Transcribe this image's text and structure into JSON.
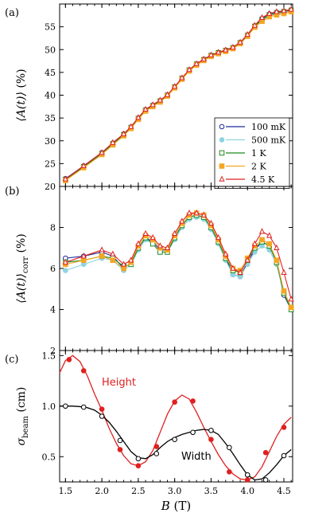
{
  "colors": {
    "s100mK": "#1f2a9c",
    "s500mK": "#8fd3e0",
    "s1K": "#1f8a1f",
    "s2K": "#f5a623",
    "s45K": "#e02020",
    "height": "#e02020",
    "width": "#000000"
  },
  "xaxis": {
    "label_main": "B",
    "label_unit": "(T)",
    "ticks": [
      "1.5",
      "2.0",
      "2.5",
      "3.0",
      "3.5",
      "4.0",
      "4.5"
    ]
  },
  "chart_data": [
    {
      "type": "line",
      "panel_label": "(a)",
      "ylabel_main": "⟨A(t)⟩",
      "ylabel_unit": "(%)",
      "xlim": [
        1.42,
        4.62
      ],
      "ylim": [
        20,
        60
      ],
      "yticks": [
        "20",
        "25",
        "30",
        "35",
        "40",
        "45",
        "50",
        "55"
      ],
      "legend": {
        "placement": "lower-right",
        "entries": [
          {
            "label": "100 mK",
            "marker": "circle",
            "color_key": "s100mK"
          },
          {
            "label": "500 mK",
            "marker": "dot",
            "color_key": "s500mK"
          },
          {
            "label": "1 K",
            "marker": "square",
            "color_key": "s1K"
          },
          {
            "label": "2 K",
            "marker": "filled-square",
            "color_key": "s2K"
          },
          {
            "label": "4.5 K",
            "marker": "triangle",
            "color_key": "s45K"
          }
        ]
      },
      "x": [
        1.5,
        1.75,
        2.0,
        2.15,
        2.3,
        2.4,
        2.5,
        2.6,
        2.7,
        2.8,
        2.9,
        3.0,
        3.1,
        3.2,
        3.3,
        3.4,
        3.5,
        3.6,
        3.7,
        3.8,
        3.9,
        4.0,
        4.1,
        4.2,
        4.3,
        4.4,
        4.5,
        4.6
      ],
      "series": [
        {
          "color_key": "s100mK",
          "marker": "circle",
          "values": [
            21.7,
            24.5,
            27.4,
            29.5,
            31.5,
            33.0,
            35.0,
            36.8,
            37.8,
            38.8,
            40.0,
            41.8,
            43.7,
            45.5,
            46.8,
            47.8,
            48.7,
            49.3,
            49.8,
            50.4,
            51.5,
            53.2,
            55.2,
            56.8,
            57.8,
            58.2,
            58.4,
            58.7
          ]
        },
        {
          "color_key": "s500mK",
          "marker": "dot",
          "values": [
            21.4,
            24.2,
            27.1,
            29.2,
            31.2,
            32.8,
            34.8,
            36.6,
            37.6,
            38.6,
            39.9,
            41.7,
            43.6,
            45.4,
            46.7,
            47.7,
            48.6,
            49.2,
            49.7,
            50.3,
            51.4,
            53.0,
            55.0,
            56.4,
            57.4,
            57.8,
            58.0,
            58.4
          ]
        },
        {
          "color_key": "s1K",
          "marker": "square",
          "values": [
            21.5,
            24.3,
            27.2,
            29.3,
            31.3,
            32.9,
            34.9,
            36.7,
            37.7,
            38.7,
            40.0,
            41.8,
            43.7,
            45.5,
            46.8,
            47.8,
            48.7,
            49.3,
            49.8,
            50.4,
            51.5,
            53.1,
            55.1,
            56.6,
            57.6,
            58.0,
            58.3,
            58.6
          ]
        },
        {
          "color_key": "s2K",
          "marker": "filled-square",
          "values": [
            21.3,
            24.1,
            27.0,
            29.1,
            31.1,
            32.7,
            34.7,
            36.5,
            37.5,
            38.5,
            39.8,
            41.6,
            43.5,
            45.3,
            46.6,
            47.6,
            48.5,
            49.1,
            49.6,
            50.2,
            51.3,
            52.9,
            54.9,
            56.2,
            57.2,
            57.6,
            57.9,
            58.3
          ]
        },
        {
          "color_key": "s45K",
          "marker": "triangle",
          "values": [
            21.6,
            24.5,
            27.4,
            29.6,
            31.5,
            33.1,
            35.1,
            36.9,
            37.9,
            38.9,
            40.1,
            41.9,
            43.8,
            45.6,
            46.9,
            47.9,
            48.8,
            49.4,
            49.9,
            50.5,
            51.6,
            53.3,
            55.3,
            57.0,
            57.9,
            58.3,
            58.5,
            58.8
          ]
        }
      ]
    },
    {
      "type": "line",
      "panel_label": "(b)",
      "ylabel_main": "⟨A(t)⟩",
      "ylabel_sub": "corr",
      "ylabel_unit": "(%)",
      "xlim": [
        1.42,
        4.62
      ],
      "ylim": [
        2,
        10
      ],
      "yticks": [
        "2",
        "4",
        "6",
        "8"
      ],
      "x": [
        1.5,
        1.75,
        2.0,
        2.15,
        2.3,
        2.4,
        2.5,
        2.6,
        2.7,
        2.8,
        2.9,
        3.0,
        3.1,
        3.2,
        3.3,
        3.4,
        3.5,
        3.6,
        3.7,
        3.8,
        3.9,
        4.0,
        4.1,
        4.2,
        4.3,
        4.4,
        4.5,
        4.6
      ],
      "series": [
        {
          "color_key": "s100mK",
          "marker": "circle",
          "values": [
            6.5,
            6.6,
            6.8,
            6.6,
            6.0,
            6.3,
            7.0,
            7.5,
            7.3,
            6.9,
            6.9,
            7.5,
            8.1,
            8.5,
            8.6,
            8.5,
            8.0,
            7.3,
            6.5,
            5.7,
            5.6,
            6.3,
            6.9,
            7.3,
            7.1,
            6.3,
            4.7,
            4.0
          ]
        },
        {
          "color_key": "s500mK",
          "marker": "dot",
          "values": [
            5.9,
            6.2,
            6.5,
            6.4,
            5.9,
            6.2,
            6.9,
            7.4,
            7.2,
            6.8,
            6.8,
            7.4,
            8.0,
            8.4,
            8.5,
            8.4,
            7.9,
            7.2,
            6.4,
            5.7,
            5.6,
            6.2,
            6.8,
            7.1,
            6.9,
            6.2,
            4.8,
            4.1
          ]
        },
        {
          "color_key": "s1K",
          "marker": "square",
          "values": [
            6.3,
            6.4,
            6.6,
            6.5,
            6.1,
            6.2,
            7.0,
            7.5,
            7.2,
            6.8,
            6.8,
            7.5,
            8.1,
            8.5,
            8.6,
            8.5,
            8.0,
            7.3,
            6.5,
            5.9,
            5.8,
            6.4,
            7.0,
            7.3,
            7.1,
            6.3,
            4.8,
            4.0
          ]
        },
        {
          "color_key": "s2K",
          "marker": "filled-square",
          "values": [
            6.2,
            6.4,
            6.6,
            6.4,
            6.0,
            6.3,
            7.1,
            7.6,
            7.4,
            7.0,
            6.9,
            7.6,
            8.2,
            8.6,
            8.7,
            8.6,
            8.1,
            7.4,
            6.6,
            6.0,
            5.9,
            6.5,
            7.1,
            7.4,
            7.2,
            6.4,
            4.9,
            4.1
          ]
        },
        {
          "color_key": "s45K",
          "marker": "triangle",
          "values": [
            6.3,
            6.6,
            6.9,
            6.7,
            6.2,
            6.4,
            7.2,
            7.7,
            7.5,
            7.1,
            7.0,
            7.7,
            8.3,
            8.7,
            8.7,
            8.6,
            8.2,
            7.5,
            6.7,
            6.0,
            5.8,
            6.4,
            7.2,
            7.8,
            7.6,
            7.0,
            5.8,
            4.5
          ]
        }
      ]
    },
    {
      "type": "line",
      "panel_label": "(c)",
      "ylabel_main": "σ",
      "ylabel_sub": "beam",
      "ylabel_unit": "(cm)",
      "xlim": [
        1.42,
        4.62
      ],
      "ylim": [
        0.25,
        1.55
      ],
      "yticks": [
        "0.5",
        "1.0",
        "1.5"
      ],
      "series": [
        {
          "name": "Height",
          "color_key": "height",
          "marker": "filled-circle",
          "x": [
            1.55,
            1.75,
            2.0,
            2.25,
            2.5,
            2.75,
            3.0,
            3.25,
            3.5,
            3.75,
            4.0,
            4.25,
            4.5
          ],
          "values": [
            1.46,
            1.35,
            0.97,
            0.57,
            0.41,
            0.6,
            1.04,
            1.05,
            0.67,
            0.35,
            0.27,
            0.54,
            0.79
          ],
          "curve_x": [
            1.42,
            1.5,
            1.6,
            1.7,
            1.8,
            1.9,
            2.0,
            2.1,
            2.2,
            2.3,
            2.4,
            2.5,
            2.6,
            2.7,
            2.8,
            2.9,
            3.0,
            3.1,
            3.2,
            3.3,
            3.4,
            3.5,
            3.6,
            3.7,
            3.8,
            3.9,
            4.0,
            4.1,
            4.2,
            4.3,
            4.4,
            4.5,
            4.6
          ],
          "curve_y": [
            1.33,
            1.45,
            1.5,
            1.44,
            1.3,
            1.12,
            0.96,
            0.78,
            0.63,
            0.51,
            0.43,
            0.41,
            0.45,
            0.56,
            0.74,
            0.92,
            1.05,
            1.11,
            1.07,
            0.94,
            0.79,
            0.65,
            0.52,
            0.41,
            0.33,
            0.28,
            0.27,
            0.3,
            0.4,
            0.55,
            0.7,
            0.82,
            0.89
          ]
        },
        {
          "name": "Width",
          "color_key": "width",
          "marker": "open-circle",
          "x": [
            1.5,
            1.75,
            2.0,
            2.25,
            2.5,
            2.75,
            3.0,
            3.25,
            3.5,
            3.75,
            4.0,
            4.25,
            4.5
          ],
          "values": [
            1.0,
            0.99,
            0.9,
            0.66,
            0.48,
            0.53,
            0.67,
            0.74,
            0.76,
            0.59,
            0.32,
            0.27,
            0.51
          ],
          "curve_x": [
            1.42,
            1.5,
            1.6,
            1.7,
            1.8,
            1.9,
            2.0,
            2.1,
            2.2,
            2.3,
            2.4,
            2.5,
            2.6,
            2.7,
            2.8,
            2.9,
            3.0,
            3.1,
            3.2,
            3.3,
            3.4,
            3.5,
            3.6,
            3.7,
            3.8,
            3.9,
            4.0,
            4.1,
            4.2,
            4.3,
            4.4,
            4.5,
            4.6
          ],
          "curve_y": [
            1.0,
            1.0,
            1.0,
            0.995,
            0.985,
            0.96,
            0.91,
            0.84,
            0.75,
            0.65,
            0.55,
            0.49,
            0.48,
            0.52,
            0.59,
            0.65,
            0.69,
            0.72,
            0.74,
            0.76,
            0.77,
            0.76,
            0.72,
            0.63,
            0.53,
            0.42,
            0.32,
            0.27,
            0.28,
            0.34,
            0.42,
            0.51,
            0.57
          ]
        }
      ]
    }
  ]
}
